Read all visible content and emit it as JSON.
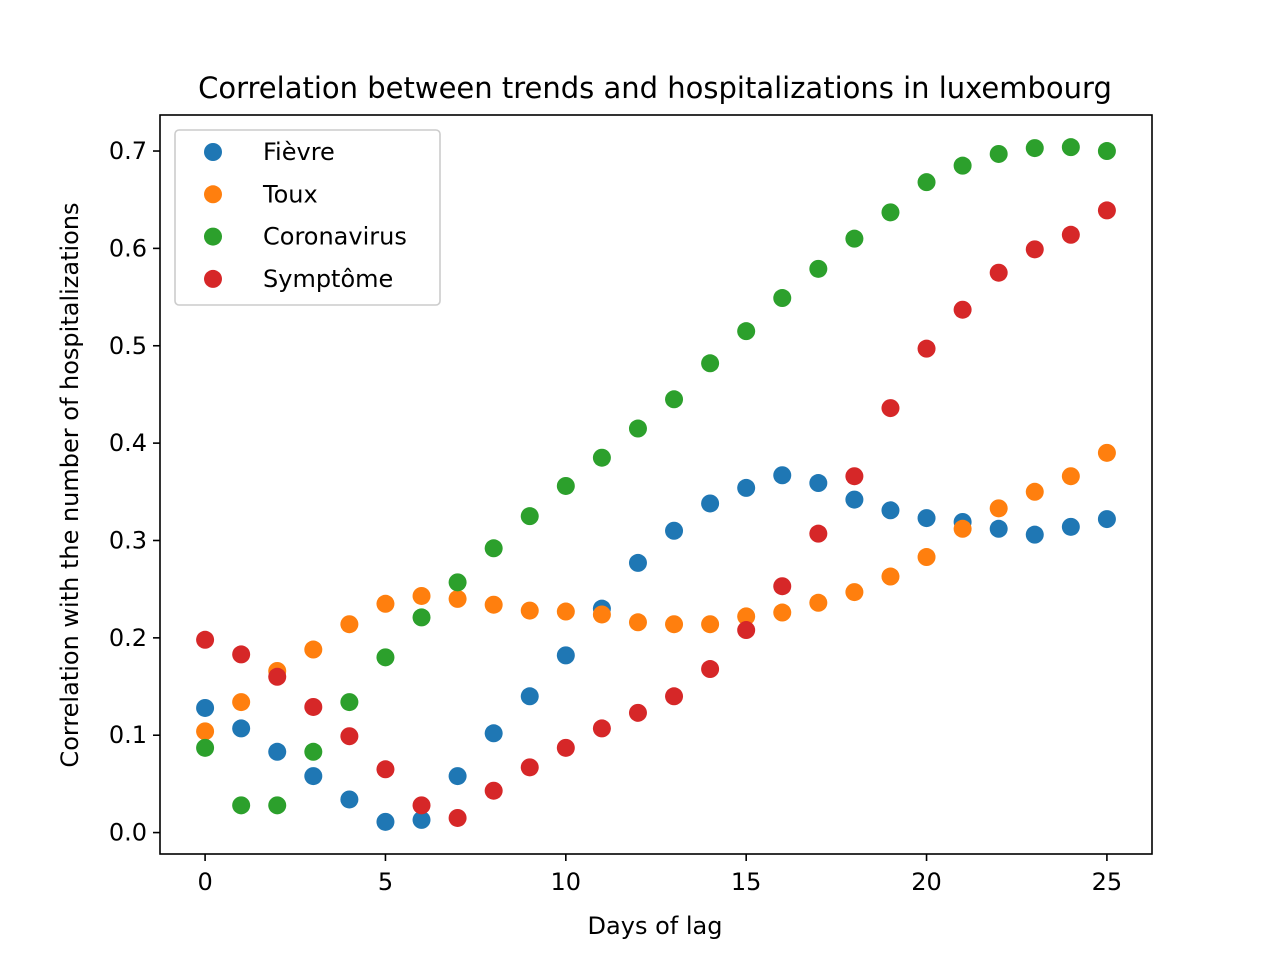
{
  "chart_data": {
    "type": "scatter",
    "title": "Correlation between trends and hospitalizations in luxembourg",
    "xlabel": "Days of lag",
    "ylabel": "Correlation with the number of hospitalizations",
    "xlim": [
      -1.25,
      26.25
    ],
    "ylim": [
      -0.022,
      0.737
    ],
    "xticks": [
      0,
      5,
      10,
      15,
      20,
      25
    ],
    "yticks": [
      0.0,
      0.1,
      0.2,
      0.3,
      0.4,
      0.5,
      0.6,
      0.7
    ],
    "xtick_labels": [
      "0",
      "5",
      "10",
      "15",
      "20",
      "25"
    ],
    "ytick_labels": [
      "0.0",
      "0.1",
      "0.2",
      "0.3",
      "0.4",
      "0.5",
      "0.6",
      "0.7"
    ],
    "grid": false,
    "legend_position": "top-left",
    "x": [
      0,
      1,
      2,
      3,
      4,
      5,
      6,
      7,
      8,
      9,
      10,
      11,
      12,
      13,
      14,
      15,
      16,
      17,
      18,
      19,
      20,
      21,
      22,
      23,
      24,
      25
    ],
    "series": [
      {
        "name": "Fièvre",
        "color": "#1f77b4",
        "values": [
          0.128,
          0.107,
          0.083,
          0.058,
          0.034,
          0.011,
          0.013,
          0.058,
          0.102,
          0.14,
          0.182,
          0.23,
          0.277,
          0.31,
          0.338,
          0.354,
          0.367,
          0.359,
          0.342,
          0.331,
          0.323,
          0.319,
          0.312,
          0.306,
          0.314,
          0.322
        ]
      },
      {
        "name": "Toux",
        "color": "#ff7f0e",
        "values": [
          0.104,
          0.134,
          0.166,
          0.188,
          0.214,
          0.235,
          0.243,
          0.24,
          0.234,
          0.228,
          0.227,
          0.224,
          0.216,
          0.214,
          0.214,
          0.222,
          0.226,
          0.236,
          0.247,
          0.263,
          0.283,
          0.312,
          0.333,
          0.35,
          0.366,
          0.39
        ]
      },
      {
        "name": "Coronavirus",
        "color": "#2ca02c",
        "values": [
          0.087,
          0.028,
          0.028,
          0.083,
          0.134,
          0.18,
          0.221,
          0.257,
          0.292,
          0.325,
          0.356,
          0.385,
          0.415,
          0.445,
          0.482,
          0.515,
          0.549,
          0.579,
          0.61,
          0.637,
          0.668,
          0.685,
          0.697,
          0.703,
          0.704,
          0.7
        ]
      },
      {
        "name": "Symptôme",
        "color": "#d62728",
        "values": [
          0.198,
          0.183,
          0.16,
          0.129,
          0.099,
          0.065,
          0.028,
          0.015,
          0.043,
          0.067,
          0.087,
          0.107,
          0.123,
          0.14,
          0.168,
          0.208,
          0.253,
          0.307,
          0.366,
          0.436,
          0.497,
          0.537,
          0.575,
          0.599,
          0.614,
          0.639
        ]
      }
    ]
  }
}
